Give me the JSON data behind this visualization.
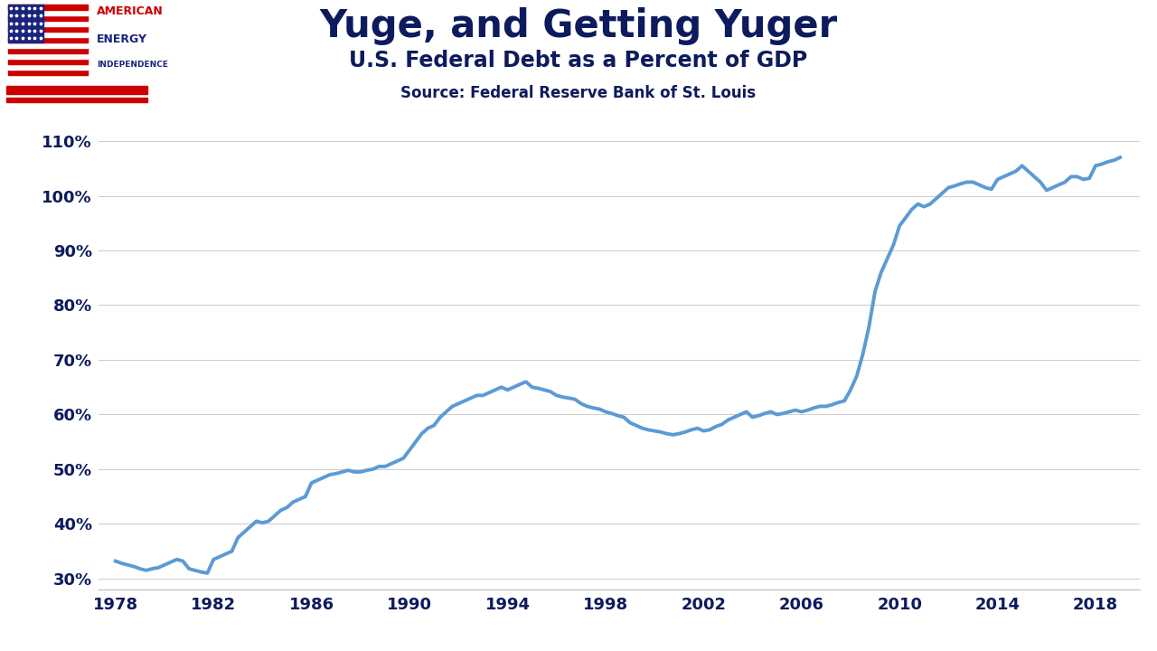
{
  "title": "Yuge, and Getting Yuger",
  "subtitle": "U.S. Federal Debt as a Percent of GDP",
  "source": "Source: Federal Reserve Bank of St. Louis",
  "line_color": "#5B9BD5",
  "line_width": 2.8,
  "header_bg": "#C9E4F5",
  "logo_bg": "#FFFFFF",
  "footer_bg": "#2E4A7A",
  "plot_bg": "#FFFFFF",
  "title_color": "#0D1B5E",
  "tick_color": "#0D1B5E",
  "grid_color": "#CCCCCC",
  "yticks": [
    30,
    40,
    50,
    60,
    70,
    80,
    90,
    100,
    110
  ],
  "xticks": [
    1978,
    1982,
    1986,
    1990,
    1994,
    1998,
    2002,
    2006,
    2010,
    2014,
    2018
  ],
  "ylim": [
    28,
    115
  ],
  "xlim": [
    1977.3,
    2019.8
  ],
  "years": [
    1978.0,
    1978.25,
    1978.5,
    1978.75,
    1979.0,
    1979.25,
    1979.5,
    1979.75,
    1980.0,
    1980.25,
    1980.5,
    1980.75,
    1981.0,
    1981.25,
    1981.5,
    1981.75,
    1982.0,
    1982.25,
    1982.5,
    1982.75,
    1983.0,
    1983.25,
    1983.5,
    1983.75,
    1984.0,
    1984.25,
    1984.5,
    1984.75,
    1985.0,
    1985.25,
    1985.5,
    1985.75,
    1986.0,
    1986.25,
    1986.5,
    1986.75,
    1987.0,
    1987.25,
    1987.5,
    1987.75,
    1988.0,
    1988.25,
    1988.5,
    1988.75,
    1989.0,
    1989.25,
    1989.5,
    1989.75,
    1990.0,
    1990.25,
    1990.5,
    1990.75,
    1991.0,
    1991.25,
    1991.5,
    1991.75,
    1992.0,
    1992.25,
    1992.5,
    1992.75,
    1993.0,
    1993.25,
    1993.5,
    1993.75,
    1994.0,
    1994.25,
    1994.5,
    1994.75,
    1995.0,
    1995.25,
    1995.5,
    1995.75,
    1996.0,
    1996.25,
    1996.5,
    1996.75,
    1997.0,
    1997.25,
    1997.5,
    1997.75,
    1998.0,
    1998.25,
    1998.5,
    1998.75,
    1999.0,
    1999.25,
    1999.5,
    1999.75,
    2000.0,
    2000.25,
    2000.5,
    2000.75,
    2001.0,
    2001.25,
    2001.5,
    2001.75,
    2002.0,
    2002.25,
    2002.5,
    2002.75,
    2003.0,
    2003.25,
    2003.5,
    2003.75,
    2004.0,
    2004.25,
    2004.5,
    2004.75,
    2005.0,
    2005.25,
    2005.5,
    2005.75,
    2006.0,
    2006.25,
    2006.5,
    2006.75,
    2007.0,
    2007.25,
    2007.5,
    2007.75,
    2008.0,
    2008.25,
    2008.5,
    2008.75,
    2009.0,
    2009.25,
    2009.5,
    2009.75,
    2010.0,
    2010.25,
    2010.5,
    2010.75,
    2011.0,
    2011.25,
    2011.5,
    2011.75,
    2012.0,
    2012.25,
    2012.5,
    2012.75,
    2013.0,
    2013.25,
    2013.5,
    2013.75,
    2014.0,
    2014.25,
    2014.5,
    2014.75,
    2015.0,
    2015.25,
    2015.5,
    2015.75,
    2016.0,
    2016.25,
    2016.5,
    2016.75,
    2017.0,
    2017.25,
    2017.5,
    2017.75,
    2018.0,
    2018.25,
    2018.5,
    2018.75,
    2019.0
  ],
  "values": [
    33.2,
    32.8,
    32.5,
    32.2,
    31.8,
    31.5,
    31.8,
    32.0,
    32.5,
    33.0,
    33.5,
    33.2,
    31.8,
    31.5,
    31.2,
    31.0,
    33.5,
    34.0,
    34.5,
    35.0,
    37.5,
    38.5,
    39.5,
    40.5,
    40.2,
    40.5,
    41.5,
    42.5,
    43.0,
    44.0,
    44.5,
    45.0,
    47.5,
    48.0,
    48.5,
    49.0,
    49.2,
    49.5,
    49.8,
    49.5,
    49.5,
    49.8,
    50.0,
    50.5,
    50.5,
    51.0,
    51.5,
    52.0,
    53.5,
    55.0,
    56.5,
    57.5,
    58.0,
    59.5,
    60.5,
    61.5,
    62.0,
    62.5,
    63.0,
    63.5,
    63.5,
    64.0,
    64.5,
    65.0,
    64.5,
    65.0,
    65.5,
    66.0,
    65.0,
    64.8,
    64.5,
    64.2,
    63.5,
    63.2,
    63.0,
    62.8,
    62.0,
    61.5,
    61.2,
    61.0,
    60.5,
    60.2,
    59.8,
    59.5,
    58.5,
    58.0,
    57.5,
    57.2,
    57.0,
    56.8,
    56.5,
    56.3,
    56.5,
    56.8,
    57.2,
    57.5,
    57.0,
    57.2,
    57.8,
    58.2,
    59.0,
    59.5,
    60.0,
    60.5,
    59.5,
    59.8,
    60.2,
    60.5,
    60.0,
    60.2,
    60.5,
    60.8,
    60.5,
    60.8,
    61.2,
    61.5,
    61.5,
    61.8,
    62.2,
    62.5,
    64.5,
    67.0,
    71.0,
    76.0,
    82.5,
    86.0,
    88.5,
    91.0,
    94.5,
    96.0,
    97.5,
    98.5,
    98.0,
    98.5,
    99.5,
    100.5,
    101.5,
    101.8,
    102.2,
    102.5,
    102.5,
    102.0,
    101.5,
    101.2,
    103.0,
    103.5,
    104.0,
    104.5,
    105.5,
    104.5,
    103.5,
    102.5,
    101.0,
    101.5,
    102.0,
    102.5,
    103.5,
    103.5,
    103.0,
    103.2,
    105.5,
    105.8,
    106.2,
    106.5,
    107.0
  ]
}
